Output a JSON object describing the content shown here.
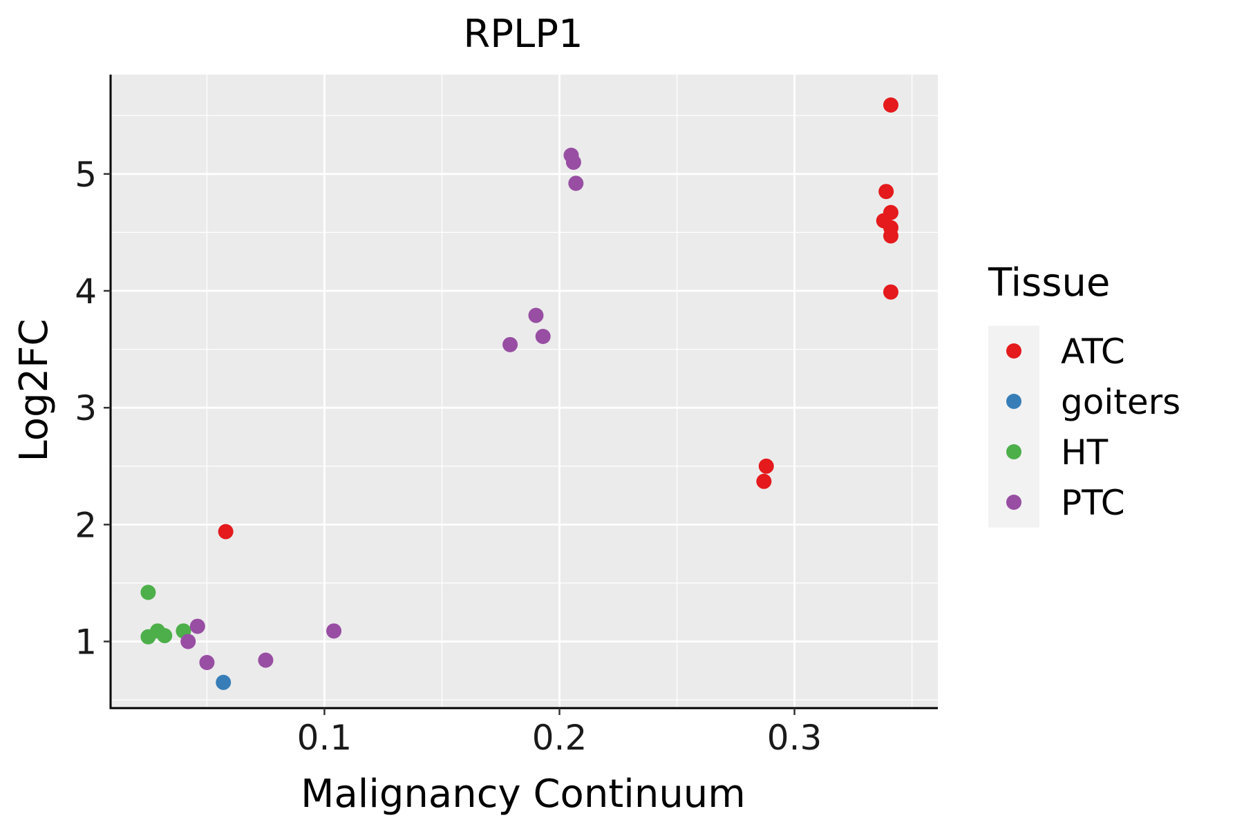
{
  "chart_data": {
    "type": "scatter",
    "title": "RPLP1",
    "xlabel": "Malignancy Continuum",
    "ylabel": "Log2FC",
    "xlim": [
      0.009,
      0.361
    ],
    "ylim": [
      0.43,
      5.85
    ],
    "x_ticks": [
      0.1,
      0.2,
      0.3
    ],
    "x_tick_labels": [
      "0.1",
      "0.2",
      "0.3"
    ],
    "y_ticks": [
      1,
      2,
      3,
      4,
      5
    ],
    "y_tick_labels": [
      "1",
      "2",
      "3",
      "4",
      "5"
    ],
    "grid": true,
    "legend": {
      "title": "Tissue",
      "position": "right"
    },
    "series": [
      {
        "name": "ATC",
        "color": "#e41a1c",
        "points": [
          {
            "x": 0.341,
            "y": 5.59
          },
          {
            "x": 0.339,
            "y": 4.85
          },
          {
            "x": 0.341,
            "y": 4.67
          },
          {
            "x": 0.338,
            "y": 4.6
          },
          {
            "x": 0.341,
            "y": 4.54
          },
          {
            "x": 0.341,
            "y": 4.47
          },
          {
            "x": 0.341,
            "y": 3.99
          },
          {
            "x": 0.288,
            "y": 2.5
          },
          {
            "x": 0.287,
            "y": 2.37
          },
          {
            "x": 0.058,
            "y": 1.94
          }
        ]
      },
      {
        "name": "goiters",
        "color": "#377eb8",
        "points": [
          {
            "x": 0.057,
            "y": 0.65
          }
        ]
      },
      {
        "name": "HT",
        "color": "#4daf4a",
        "points": [
          {
            "x": 0.025,
            "y": 1.42
          },
          {
            "x": 0.029,
            "y": 1.09
          },
          {
            "x": 0.025,
            "y": 1.04
          },
          {
            "x": 0.032,
            "y": 1.05
          },
          {
            "x": 0.04,
            "y": 1.09
          }
        ]
      },
      {
        "name": "PTC",
        "color": "#984ea3",
        "points": [
          {
            "x": 0.205,
            "y": 5.16
          },
          {
            "x": 0.206,
            "y": 5.1
          },
          {
            "x": 0.207,
            "y": 4.92
          },
          {
            "x": 0.19,
            "y": 3.79
          },
          {
            "x": 0.193,
            "y": 3.61
          },
          {
            "x": 0.179,
            "y": 3.54
          },
          {
            "x": 0.104,
            "y": 1.09
          },
          {
            "x": 0.046,
            "y": 1.13
          },
          {
            "x": 0.042,
            "y": 1.0
          },
          {
            "x": 0.05,
            "y": 0.82
          },
          {
            "x": 0.075,
            "y": 0.84
          }
        ]
      }
    ]
  }
}
